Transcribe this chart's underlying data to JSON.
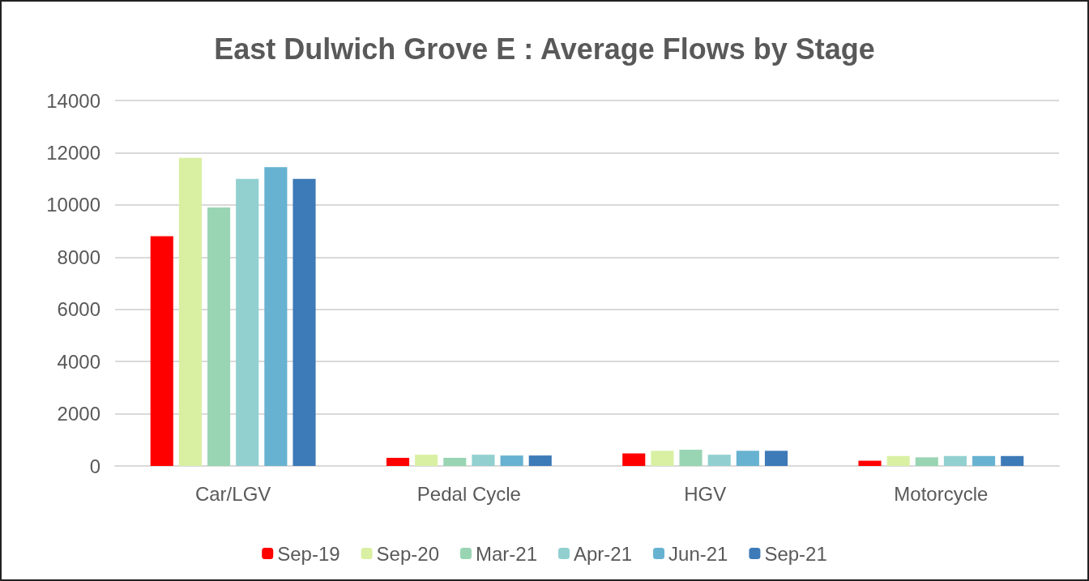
{
  "chart_data": {
    "type": "bar",
    "title": "East Dulwich Grove E : Average Flows by Stage",
    "categories": [
      "Car/LGV",
      "Pedal Cycle",
      "HGV",
      "Motorcycle"
    ],
    "series": [
      {
        "name": "Sep-19",
        "color": "#ff0000",
        "values": [
          8800,
          310,
          480,
          200
        ]
      },
      {
        "name": "Sep-20",
        "color": "#d9f0a3",
        "values": [
          11800,
          430,
          580,
          380
        ]
      },
      {
        "name": "Mar-21",
        "color": "#99d5b3",
        "values": [
          9900,
          310,
          620,
          330
        ]
      },
      {
        "name": "Apr-21",
        "color": "#92d0d0",
        "values": [
          11000,
          430,
          430,
          380
        ]
      },
      {
        "name": "Jun-21",
        "color": "#67b2d1",
        "values": [
          11450,
          400,
          580,
          380
        ]
      },
      {
        "name": "Sep-21",
        "color": "#3d7ab8",
        "values": [
          11000,
          400,
          580,
          380
        ]
      }
    ],
    "ylim": [
      0,
      14000
    ],
    "yticks": [
      0,
      2000,
      4000,
      6000,
      8000,
      10000,
      12000,
      14000
    ],
    "grid": "y",
    "legend": "bottom"
  }
}
